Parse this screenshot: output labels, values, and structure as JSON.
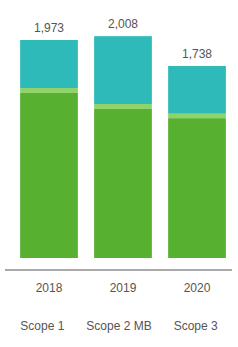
{
  "chart_data": {
    "type": "bar",
    "stacked": true,
    "data_labels": false,
    "tick_labels": "x",
    "grid": false,
    "legend": "bottom",
    "categories": [
      "2018",
      "2019",
      "2020"
    ],
    "series": [
      {
        "name": "Scope 1",
        "color": "#58b031",
        "values": [
          1494,
          1349,
          1266
        ]
      },
      {
        "name": "Scope 2 MB",
        "color": "#8fd36b",
        "values": [
          45,
          45,
          40
        ]
      },
      {
        "name": "Scope 3",
        "color": "#2dbab8",
        "values": [
          434,
          614,
          432
        ]
      }
    ],
    "totals": {
      "values": [
        1973,
        2008,
        1738
      ],
      "value_labels": [
        "1,973",
        "2,008",
        "1,738"
      ]
    },
    "ylim": [
      0,
      2100
    ]
  }
}
